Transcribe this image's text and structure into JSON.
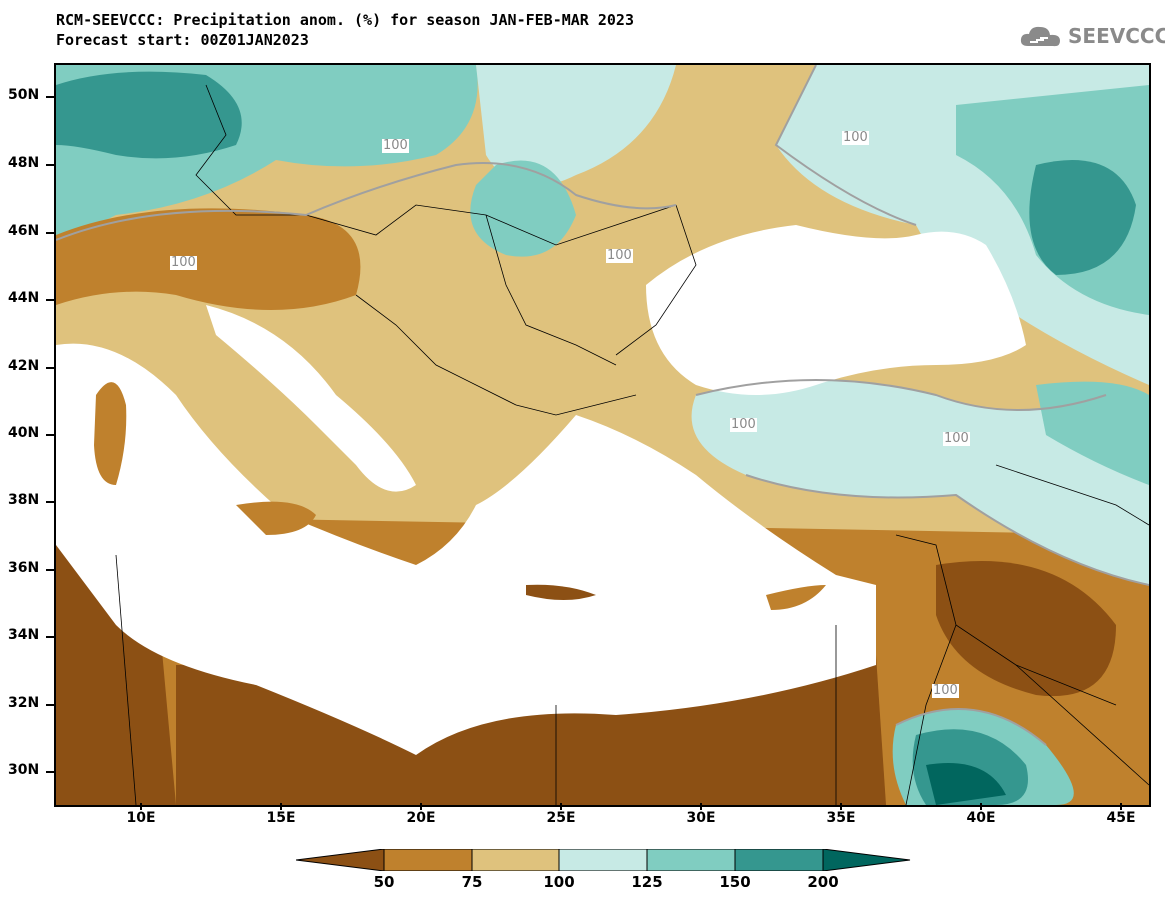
{
  "title": {
    "line1": "RCM-SEEVCCC: Precipitation anom. (%) for season JAN-FEB-MAR 2023",
    "line2": "Forecast start: 00Z01JAN2023"
  },
  "logo": {
    "text": "SEEVCCC",
    "icon": "cloud-icon"
  },
  "map": {
    "lat_labels": [
      "50N",
      "48N",
      "46N",
      "44N",
      "42N",
      "40N",
      "38N",
      "36N",
      "34N",
      "32N",
      "30N"
    ],
    "lon_labels": [
      "10E",
      "15E",
      "20E",
      "25E",
      "30E",
      "35E",
      "40E",
      "45E"
    ],
    "contour_labels": [
      "100",
      "100",
      "100",
      "100",
      "100",
      "100",
      "100"
    ],
    "sea_color": "#ffffff",
    "border_color": "#000000"
  },
  "colorbar": {
    "labels": [
      "50",
      "75",
      "100",
      "125",
      "150",
      "200"
    ],
    "colors": [
      "#8c5014",
      "#bf812d",
      "#dfc27d",
      "#c7eae5",
      "#80cdc1",
      "#35978f",
      "#01665e"
    ]
  }
}
